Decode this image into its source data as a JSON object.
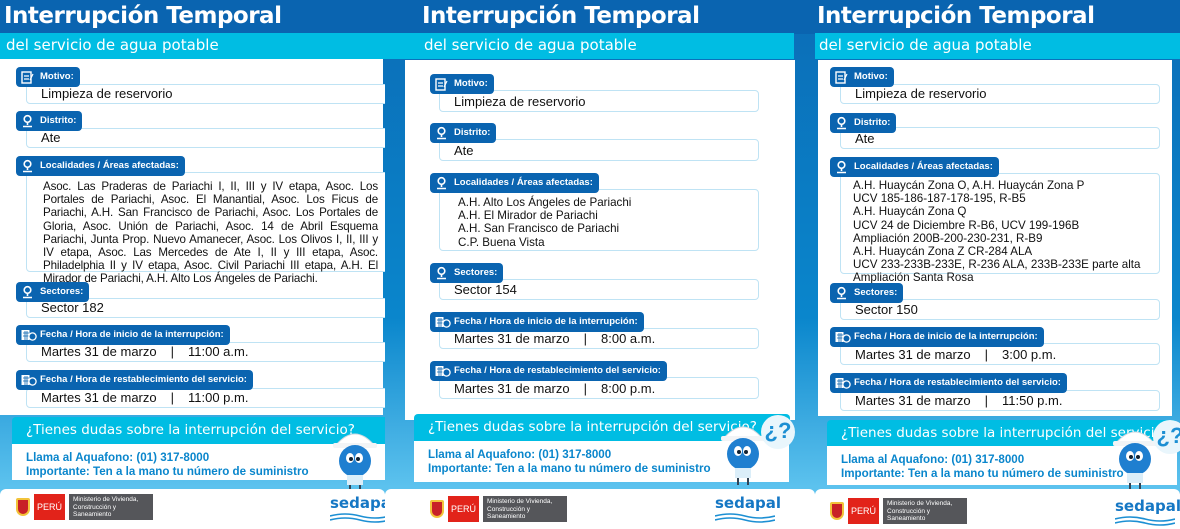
{
  "colors": {
    "header": "#0a64b0",
    "subheader": "#00bde3",
    "accent": "#0a86cc",
    "label_bg": "#0a64b0"
  },
  "panels": [
    {
      "title": "Interrupción Temporal",
      "subtitle": "del servicio de agua potable",
      "motivo_label": "Motivo:",
      "motivo": "Limpieza de reservorio",
      "distrito_label": "Distrito:",
      "distrito": "Ate",
      "localidades_label": "Localidades / Áreas afectadas:",
      "localidades": [
        "Asoc. Las Praderas de Pariachi I, II, III y IV etapa, Asoc. Los Portales de Pariachi, Asoc. El Manantial, Asoc. Los Ficus de Pariachi, A.H. San Francisco de Pariachi, Asoc. Los Portales de Gloria, Asoc. Unión de Pariachi, Asoc. 14 de Abril Esquema Pariachi, Junta Prop. Nuevo Amanecer, Asoc. Los Olivos I, II, III y IV etapa, Asoc. Las Mercedes de Ate I, II y III etapa, Asoc. Philadelphia II y IV etapa, Asoc. Civil Pariachi III etapa, A.H. El Mirador de Pariachi, A.H. Alto Los Ángeles de Pariachi."
      ],
      "sectores_label": "Sectores:",
      "sectores": "Sector 182",
      "inicio_label": "Fecha / Hora de inicio de la interrupción:",
      "inicio_fecha": "Martes 31 de marzo",
      "inicio_hora": "11:00 a.m.",
      "rest_label": "Fecha / Hora de restablecimiento del servicio:",
      "rest_fecha": "Martes 31 de marzo",
      "rest_hora": "11:00 p.m.",
      "question": "¿Tienes dudas sobre la interrupción del servicio?",
      "phone": "Llama al Aquafono: (01) 317-8000",
      "important": "Importante: Ten a la mano tu número de suministro",
      "peru": "PERÚ",
      "ministry": "Ministerio de Vivienda, Construcción y Saneamiento",
      "brand": "sedapal"
    },
    {
      "title": "Interrupción Temporal",
      "subtitle": "del servicio de agua potable",
      "motivo_label": "Motivo:",
      "motivo": "Limpieza de reservorio",
      "distrito_label": "Distrito:",
      "distrito": "Ate",
      "localidades_label": "Localidades / Áreas afectadas:",
      "localidades": [
        "A.H. Alto Los Ángeles de Pariachi",
        "A.H. El Mirador de Pariachi",
        "A.H. San Francisco de Pariachi",
        "C.P. Buena Vista"
      ],
      "sectores_label": "Sectores:",
      "sectores": "Sector  154",
      "inicio_label": "Fecha / Hora de inicio de la interrupción:",
      "inicio_fecha": "Martes 31 de marzo",
      "inicio_hora": "8:00 a.m.",
      "rest_label": "Fecha / Hora de restablecimiento del servicio:",
      "rest_fecha": "Martes 31 de marzo",
      "rest_hora": "8:00 p.m.",
      "question": "¿Tienes dudas sobre la interrupción del servicio?",
      "phone": "Llama al Aquafono: (01) 317-8000",
      "important": "Importante: Ten a la mano tu número de suministro",
      "peru": "PERÚ",
      "ministry": "Ministerio de Vivienda, Construcción y Saneamiento",
      "brand": "sedapal"
    },
    {
      "title": "Interrupción Temporal",
      "subtitle": "del servicio de agua potable",
      "motivo_label": "Motivo:",
      "motivo": "Limpieza de reservorio",
      "distrito_label": "Distrito:",
      "distrito": "Ate",
      "localidades_label": "Localidades / Áreas afectadas:",
      "localidades": [
        "A.H. Huaycán Zona O, A.H. Huaycán Zona P",
        "UCV 185-186-187-178-195, R-B5",
        "A.H. Huaycán Zona Q",
        "UCV 24 de Diciembre R-B6, UCV 199-196B",
        "Ampliación 200B-200-230-231, R-B9",
        "A.H. Huaycán Zona Z CR-284 ALA",
        "UCV 233-233B-233E, R-236 ALA, 233B-233E parte alta Ampliación Santa Rosa"
      ],
      "sectores_label": "Sectores:",
      "sectores": "Sector 150",
      "inicio_label": "Fecha / Hora de inicio de la interrupción:",
      "inicio_fecha": "Martes 31 de marzo",
      "inicio_hora": "3:00 p.m.",
      "rest_label": "Fecha / Hora de restablecimiento del servicio:",
      "rest_fecha": "Martes 31 de marzo",
      "rest_hora": "11:50 p.m.",
      "question": "¿Tienes dudas sobre la interrupción del servicio?",
      "phone": "Llama al Aquafono: (01) 317-8000",
      "important": "Importante: Ten a la mano tu número de suministro",
      "peru": "PERÚ",
      "ministry": "Ministerio de Vivienda, Construcción y Saneamiento",
      "brand": "sedapal"
    }
  ]
}
